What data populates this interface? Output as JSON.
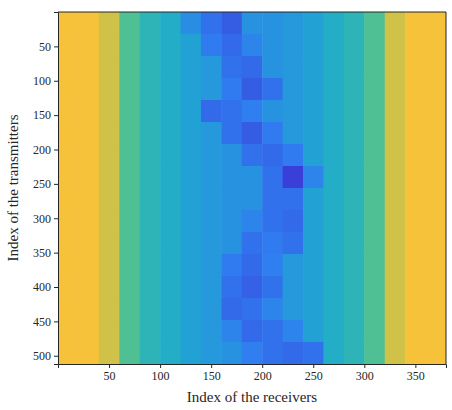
{
  "chart_data": {
    "type": "heatmap",
    "x_label": "Index of the receivers",
    "y_label": "Index of the transmitters",
    "xlim": [
      0,
      380
    ],
    "ylim": [
      512,
      0
    ],
    "xticks": [
      50,
      100,
      150,
      200,
      250,
      300,
      350
    ],
    "yticks": [
      50,
      100,
      150,
      200,
      250,
      300,
      350,
      400,
      450,
      500
    ],
    "x": [
      10,
      30,
      50,
      70,
      90,
      110,
      130,
      150,
      170,
      190,
      210,
      230,
      250,
      270,
      290,
      310,
      330,
      350,
      370
    ],
    "y": [
      16,
      48,
      80,
      112,
      144,
      176,
      208,
      240,
      272,
      304,
      336,
      368,
      400,
      432,
      464,
      496
    ],
    "z": [
      [
        0.92,
        0.92,
        0.85,
        0.65,
        0.55,
        0.5,
        0.38,
        0.3,
        0.25,
        0.4,
        0.4,
        0.42,
        0.45,
        0.5,
        0.55,
        0.65,
        0.85,
        0.92,
        0.92
      ],
      [
        0.92,
        0.92,
        0.85,
        0.65,
        0.55,
        0.5,
        0.45,
        0.32,
        0.28,
        0.35,
        0.4,
        0.42,
        0.45,
        0.5,
        0.55,
        0.65,
        0.85,
        0.92,
        0.92
      ],
      [
        0.92,
        0.92,
        0.85,
        0.65,
        0.55,
        0.5,
        0.45,
        0.42,
        0.3,
        0.28,
        0.4,
        0.42,
        0.45,
        0.5,
        0.55,
        0.65,
        0.85,
        0.92,
        0.92
      ],
      [
        0.92,
        0.92,
        0.85,
        0.65,
        0.55,
        0.5,
        0.45,
        0.42,
        0.32,
        0.25,
        0.3,
        0.42,
        0.45,
        0.5,
        0.55,
        0.65,
        0.85,
        0.92,
        0.92
      ],
      [
        0.92,
        0.92,
        0.85,
        0.65,
        0.55,
        0.5,
        0.45,
        0.28,
        0.3,
        0.33,
        0.4,
        0.42,
        0.45,
        0.5,
        0.55,
        0.65,
        0.85,
        0.92,
        0.92
      ],
      [
        0.92,
        0.92,
        0.85,
        0.65,
        0.55,
        0.5,
        0.45,
        0.42,
        0.3,
        0.25,
        0.32,
        0.42,
        0.45,
        0.5,
        0.55,
        0.65,
        0.85,
        0.92,
        0.92
      ],
      [
        0.92,
        0.92,
        0.85,
        0.65,
        0.55,
        0.5,
        0.45,
        0.42,
        0.4,
        0.3,
        0.28,
        0.32,
        0.45,
        0.5,
        0.55,
        0.65,
        0.85,
        0.92,
        0.92
      ],
      [
        0.92,
        0.92,
        0.85,
        0.65,
        0.55,
        0.5,
        0.45,
        0.42,
        0.4,
        0.4,
        0.3,
        0.18,
        0.35,
        0.5,
        0.55,
        0.65,
        0.85,
        0.92,
        0.92
      ],
      [
        0.92,
        0.92,
        0.85,
        0.65,
        0.55,
        0.5,
        0.45,
        0.42,
        0.4,
        0.4,
        0.3,
        0.3,
        0.45,
        0.5,
        0.55,
        0.65,
        0.85,
        0.92,
        0.92
      ],
      [
        0.92,
        0.92,
        0.85,
        0.65,
        0.55,
        0.5,
        0.45,
        0.42,
        0.4,
        0.35,
        0.3,
        0.28,
        0.45,
        0.5,
        0.55,
        0.65,
        0.85,
        0.92,
        0.92
      ],
      [
        0.92,
        0.92,
        0.85,
        0.65,
        0.55,
        0.5,
        0.45,
        0.42,
        0.4,
        0.3,
        0.32,
        0.3,
        0.45,
        0.5,
        0.55,
        0.65,
        0.85,
        0.92,
        0.92
      ],
      [
        0.92,
        0.92,
        0.85,
        0.65,
        0.55,
        0.5,
        0.45,
        0.42,
        0.32,
        0.28,
        0.33,
        0.42,
        0.45,
        0.5,
        0.55,
        0.65,
        0.85,
        0.92,
        0.92
      ],
      [
        0.92,
        0.92,
        0.85,
        0.65,
        0.55,
        0.5,
        0.45,
        0.42,
        0.3,
        0.26,
        0.3,
        0.42,
        0.45,
        0.5,
        0.55,
        0.65,
        0.85,
        0.92,
        0.92
      ],
      [
        0.92,
        0.92,
        0.85,
        0.65,
        0.55,
        0.5,
        0.45,
        0.42,
        0.28,
        0.3,
        0.35,
        0.42,
        0.45,
        0.5,
        0.55,
        0.65,
        0.85,
        0.92,
        0.92
      ],
      [
        0.92,
        0.92,
        0.85,
        0.65,
        0.55,
        0.5,
        0.45,
        0.42,
        0.35,
        0.28,
        0.3,
        0.35,
        0.45,
        0.5,
        0.55,
        0.65,
        0.85,
        0.92,
        0.92
      ],
      [
        0.92,
        0.92,
        0.85,
        0.65,
        0.55,
        0.5,
        0.45,
        0.42,
        0.4,
        0.33,
        0.3,
        0.28,
        0.3,
        0.5,
        0.55,
        0.65,
        0.85,
        0.92,
        0.92
      ]
    ]
  }
}
